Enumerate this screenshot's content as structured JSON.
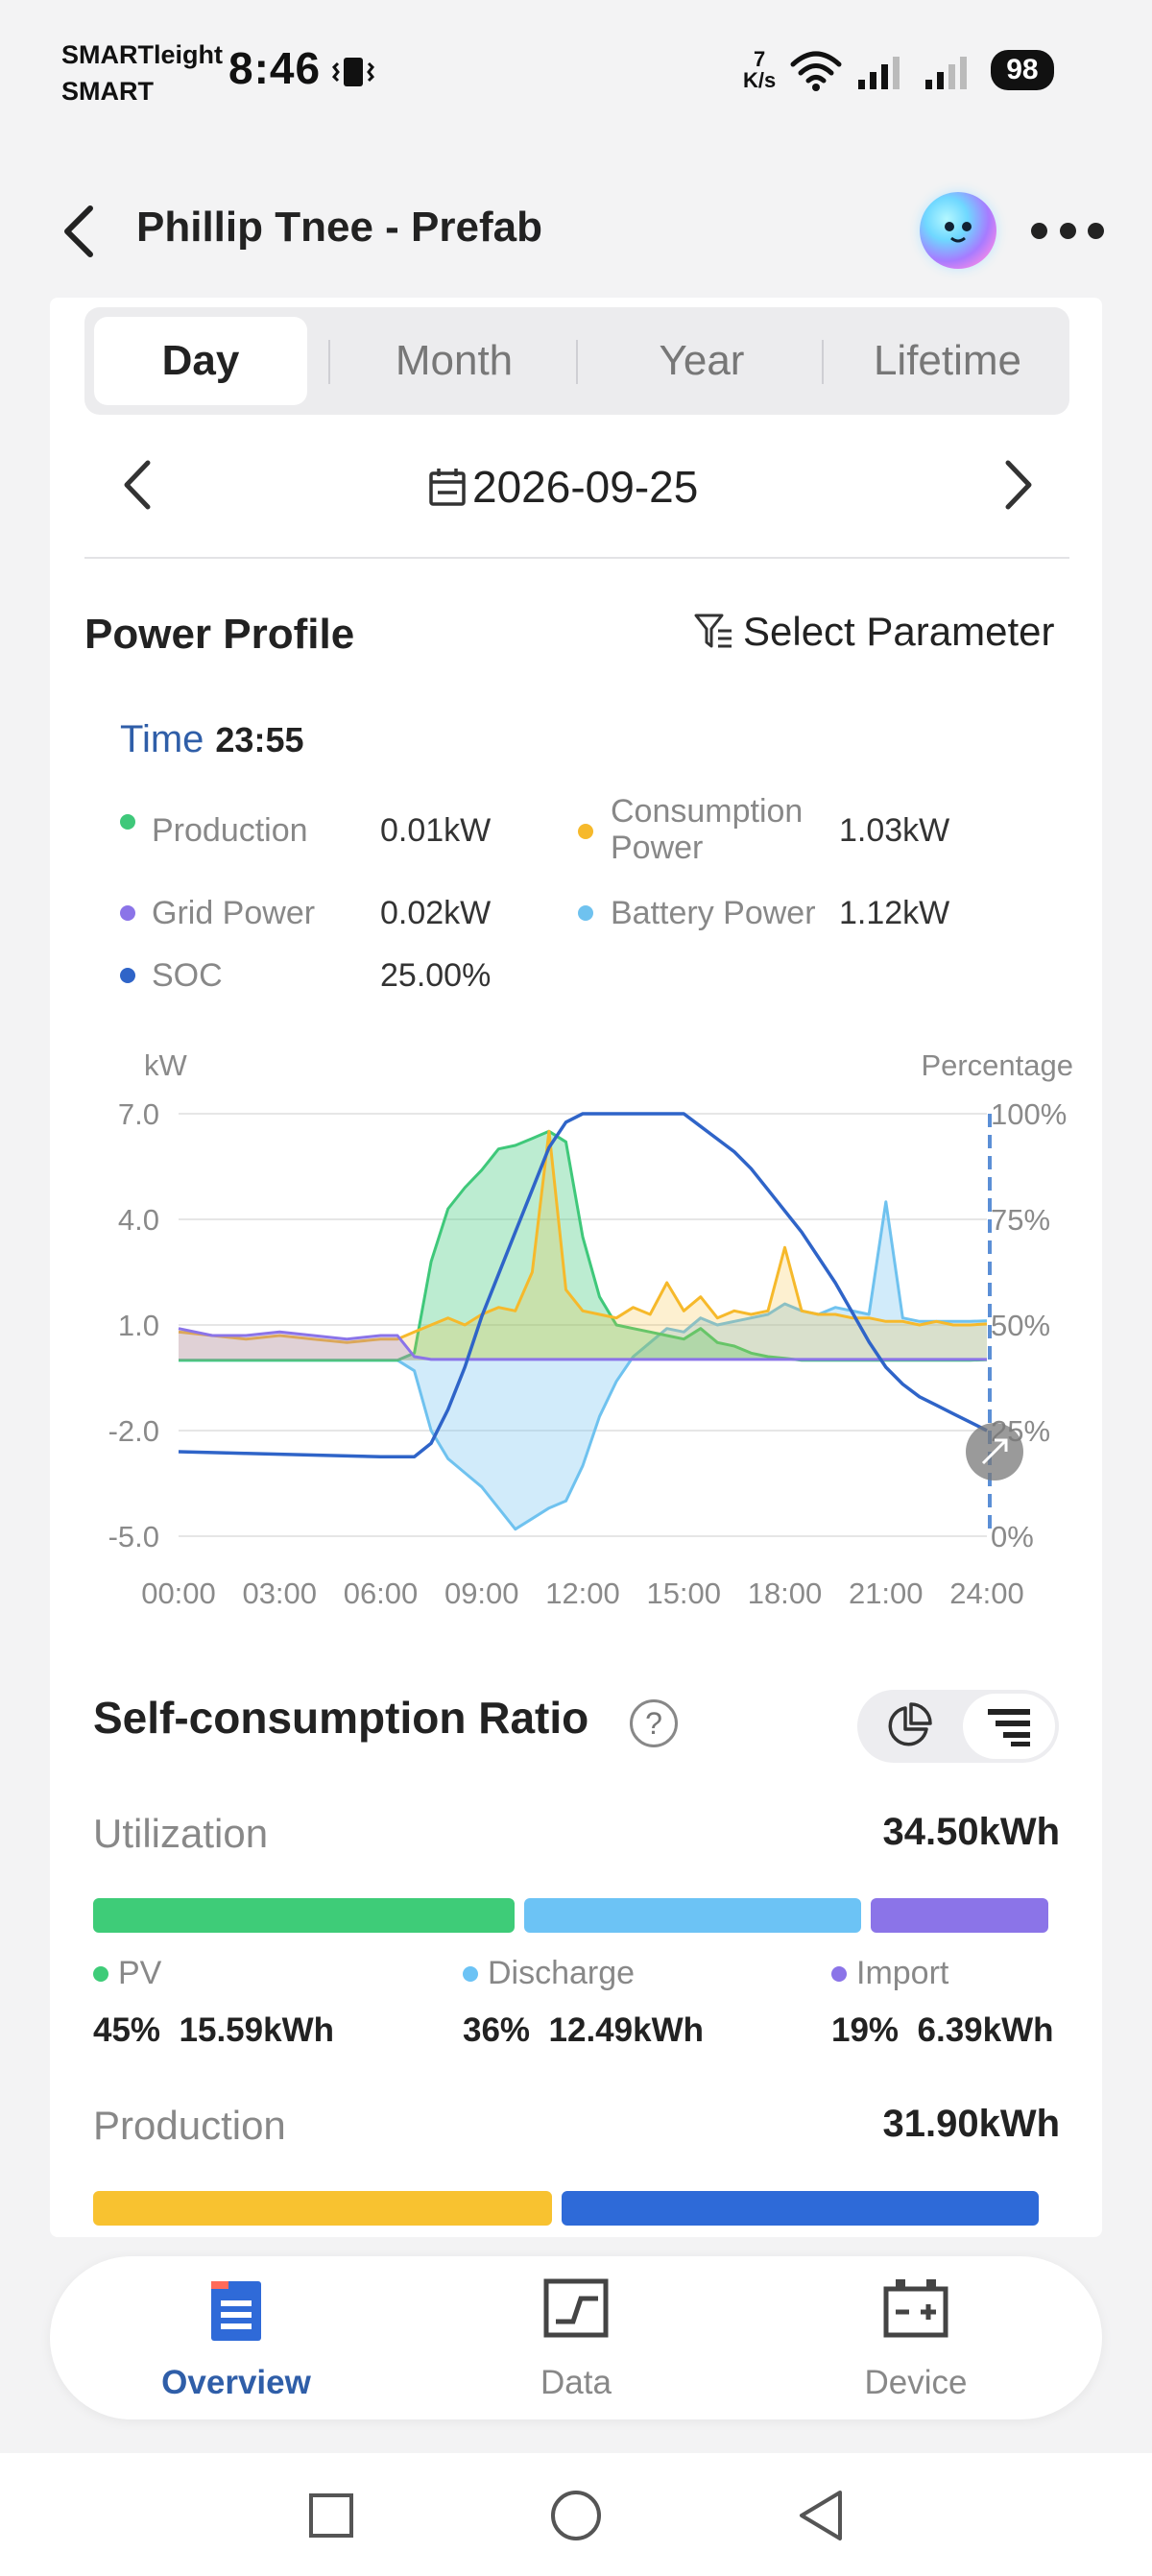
{
  "status_bar": {
    "carrier_line1": "SMARTleight",
    "carrier_line2": "SMART",
    "time": "8:46",
    "speed_value": "7",
    "speed_unit": "K/s",
    "battery": "98"
  },
  "header": {
    "title": "Phillip Tnee - Prefab"
  },
  "tabs": [
    "Day",
    "Month",
    "Year",
    "Lifetime"
  ],
  "active_tab": "Day",
  "date": "2026-09-25",
  "power_profile": {
    "title": "Power Profile",
    "select_parameter": "Select Parameter",
    "time_label": "Time",
    "time_value": "23:55",
    "legend": [
      {
        "label": "Production",
        "value": "0.01kW",
        "color": "#3fc87a"
      },
      {
        "label": "Consumption Power",
        "value": "1.03kW",
        "color": "#f6b92b"
      },
      {
        "label": "Grid Power",
        "value": "0.02kW",
        "color": "#8b74e8"
      },
      {
        "label": "Battery Power",
        "value": "1.12kW",
        "color": "#6fc2ef"
      },
      {
        "label": "SOC",
        "value": "25.00%",
        "color": "#2f64c8"
      }
    ]
  },
  "chart_data": {
    "type": "area",
    "left_axis_label": "kW",
    "right_axis_label": "Percentage",
    "left_ticks": [
      "7.0",
      "4.0",
      "1.0",
      "-2.0",
      "-5.0"
    ],
    "right_ticks": [
      "100%",
      "75%",
      "50%",
      "25%",
      "0%"
    ],
    "x_ticks": [
      "00:00",
      "03:00",
      "06:00",
      "09:00",
      "12:00",
      "15:00",
      "18:00",
      "21:00",
      "24:00"
    ],
    "ylim_left": [
      -5,
      7
    ],
    "ylim_right": [
      0,
      100
    ],
    "x_hours": [
      0,
      1,
      2,
      3,
      4,
      5,
      6,
      6.5,
      7,
      7.5,
      8,
      8.5,
      9,
      9.5,
      10,
      10.5,
      11,
      11.5,
      12,
      12.5,
      13,
      13.5,
      14,
      14.5,
      15,
      15.5,
      16,
      16.5,
      17,
      17.5,
      18,
      18.5,
      19,
      19.5,
      20,
      20.5,
      21,
      21.5,
      22,
      22.5,
      23,
      23.5,
      24
    ],
    "series": [
      {
        "name": "Production",
        "color": "#3fc87a",
        "values": [
          0,
          0,
          0,
          0,
          0,
          0,
          0,
          0,
          0.2,
          2.8,
          4.3,
          4.9,
          5.4,
          6.0,
          6.1,
          6.3,
          6.5,
          6.2,
          3.5,
          1.8,
          1.0,
          0.9,
          0.8,
          0.7,
          0.6,
          0.9,
          0.5,
          0.4,
          0.2,
          0.1,
          0.05,
          0,
          0,
          0,
          0,
          0,
          0,
          0,
          0,
          0,
          0,
          0,
          0.01
        ]
      },
      {
        "name": "Consumption Power",
        "color": "#f6b92b",
        "values": [
          0.8,
          0.7,
          0.6,
          0.7,
          0.6,
          0.5,
          0.6,
          0.6,
          0.8,
          1.0,
          1.2,
          1.0,
          1.3,
          1.5,
          1.4,
          2.5,
          6.5,
          2.0,
          1.4,
          1.3,
          1.2,
          1.5,
          1.3,
          2.2,
          1.4,
          1.8,
          1.2,
          1.4,
          1.3,
          1.4,
          3.2,
          1.4,
          1.3,
          1.3,
          1.2,
          1.2,
          1.1,
          1.1,
          1.0,
          1.1,
          1.0,
          1.0,
          1.03
        ]
      },
      {
        "name": "Grid Power",
        "color": "#8b74e8",
        "values": [
          0.9,
          0.7,
          0.7,
          0.8,
          0.7,
          0.6,
          0.7,
          0.7,
          0.1,
          0.02,
          0.02,
          0.02,
          0.02,
          0.02,
          0.02,
          0.02,
          0.02,
          0.02,
          0.02,
          0.02,
          0.02,
          0.02,
          0.02,
          0.02,
          0.02,
          0.02,
          0.02,
          0.02,
          0.02,
          0.02,
          0.02,
          0.02,
          0.02,
          0.02,
          0.02,
          0.02,
          0.02,
          0.02,
          0.02,
          0.02,
          0.02,
          0.02,
          0.02
        ]
      },
      {
        "name": "Battery Power",
        "color": "#6fc2ef",
        "values": [
          0,
          0,
          0,
          0,
          0,
          0,
          0,
          0,
          -0.3,
          -2.0,
          -2.8,
          -3.2,
          -3.6,
          -4.2,
          -4.8,
          -4.5,
          -4.2,
          -4.0,
          -3.0,
          -1.6,
          -0.6,
          0.1,
          0.5,
          0.9,
          0.8,
          1.2,
          1.0,
          1.1,
          1.2,
          1.3,
          1.6,
          1.4,
          1.3,
          1.5,
          1.4,
          1.3,
          4.5,
          1.2,
          1.1,
          1.1,
          1.1,
          1.1,
          1.12
        ]
      },
      {
        "name": "SOC",
        "color": "#2f64c8",
        "axis": "right",
        "values": [
          20,
          19.8,
          19.6,
          19.4,
          19.2,
          19,
          18.8,
          18.8,
          18.8,
          22,
          30,
          40,
          52,
          62,
          72,
          82,
          92,
          98,
          100,
          100,
          100,
          100,
          100,
          100,
          100,
          97,
          94,
          91,
          87,
          82,
          77,
          72,
          66,
          60,
          53,
          46,
          40,
          36,
          33,
          31,
          29,
          27,
          25
        ]
      }
    ]
  },
  "self_consumption": {
    "title": "Self-consumption Ratio",
    "utilization": {
      "label": "Utilization",
      "total": "34.50kWh",
      "items": [
        {
          "name": "PV",
          "percent": "45%",
          "energy": "15.59kWh",
          "color": "#3ecc78",
          "share": 0.45
        },
        {
          "name": "Discharge",
          "percent": "36%",
          "energy": "12.49kWh",
          "color": "#6cc3f5",
          "share": 0.36
        },
        {
          "name": "Import",
          "percent": "19%",
          "energy": "6.39kWh",
          "color": "#8b74e8",
          "share": 0.19
        }
      ]
    },
    "production": {
      "label": "Production",
      "total": "31.90kWh",
      "bar_colors": [
        "#f8c230",
        "#2e6ad8"
      ],
      "shares": [
        0.49,
        0.51
      ]
    }
  },
  "bottom_nav": [
    {
      "label": "Overview",
      "icon": "overview-icon",
      "active": true
    },
    {
      "label": "Data",
      "icon": "data-chart-icon",
      "active": false
    },
    {
      "label": "Device",
      "icon": "device-icon",
      "active": false
    }
  ]
}
